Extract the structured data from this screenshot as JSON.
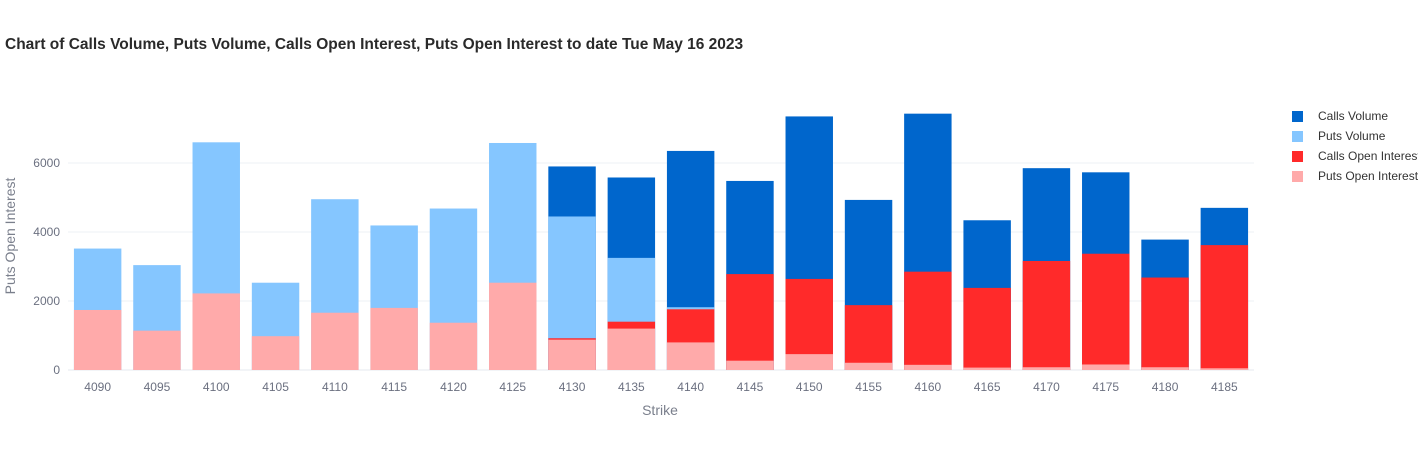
{
  "chart_data": {
    "type": "bar",
    "title": "Chart of Calls Volume, Puts Volume, Calls Open Interest, Puts Open Interest to date Tue May 16 2023",
    "xlabel": "Strike",
    "ylabel": "Puts Open Interest",
    "ylim": [
      0,
      7700
    ],
    "yticks": [
      0,
      2000,
      4000,
      6000
    ],
    "grid": true,
    "legend": "right",
    "barmode": "overlay",
    "categories": [
      "4090",
      "4095",
      "4100",
      "4105",
      "4110",
      "4115",
      "4120",
      "4125",
      "4130",
      "4135",
      "4140",
      "4145",
      "4150",
      "4155",
      "4160",
      "4165",
      "4170",
      "4175",
      "4180",
      "4185"
    ],
    "series": [
      {
        "name": "Calls Volume",
        "color": "#0066cc",
        "values": [
          0,
          0,
          0,
          0,
          0,
          0,
          0,
          0,
          5900,
          5580,
          6350,
          5480,
          7350,
          4930,
          7430,
          4340,
          5850,
          5730,
          3780,
          4700
        ]
      },
      {
        "name": "Puts Volume",
        "color": "#85c6ff",
        "values": [
          3520,
          3040,
          6600,
          2530,
          4950,
          4190,
          4680,
          6580,
          4450,
          3250,
          1820,
          0,
          0,
          0,
          0,
          0,
          0,
          0,
          0,
          0
        ]
      },
      {
        "name": "Calls Open Interest",
        "color": "#ff2a2a",
        "values": [
          0,
          0,
          0,
          0,
          0,
          0,
          0,
          0,
          920,
          1400,
          1760,
          2780,
          2640,
          1880,
          2850,
          2380,
          3160,
          3370,
          2680,
          3620
        ]
      },
      {
        "name": "Puts Open Interest",
        "color": "#ffaaaa",
        "values": [
          1740,
          1140,
          2220,
          980,
          1660,
          1800,
          1370,
          2530,
          880,
          1200,
          800,
          270,
          460,
          210,
          150,
          70,
          80,
          160,
          80,
          50
        ]
      }
    ]
  }
}
